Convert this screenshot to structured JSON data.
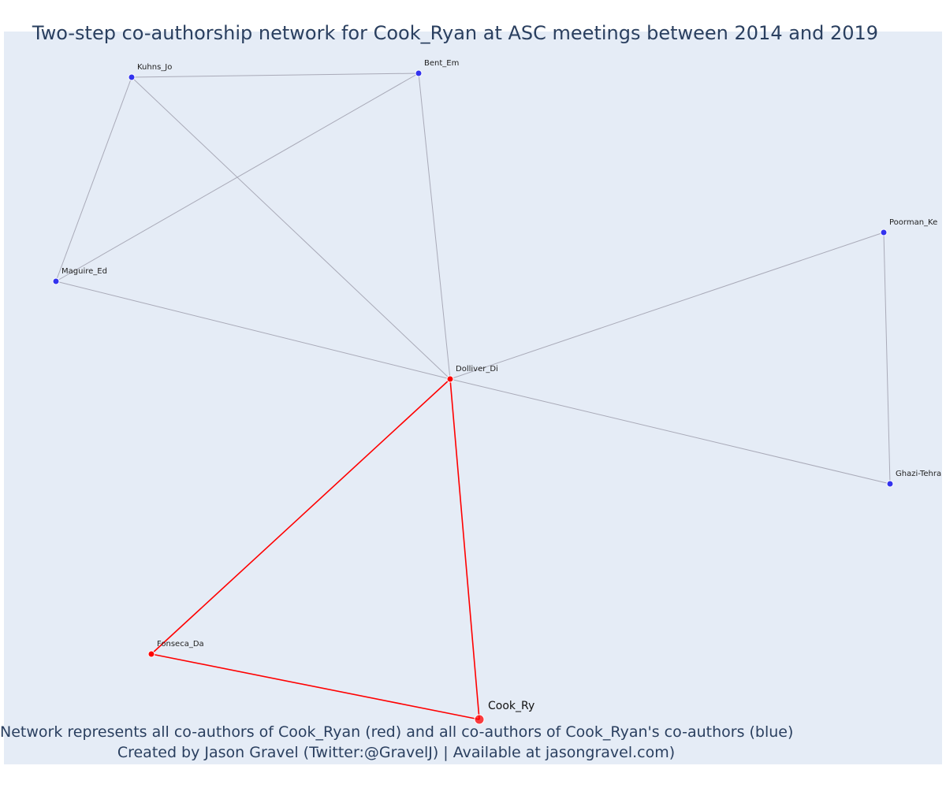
{
  "title": "Two-step co-authorship network for Cook_Ryan at ASC meetings between 2014 and 2019",
  "footnotes": [
    "Network represents all co-authors of Cook_Ryan (red) and all co-authors of Cook_Ryan's co-authors (blue)",
    "Created by Jason Gravel (Twitter:@GravelJ) | Available at jasongravel.com)"
  ],
  "colors": {
    "background": "#e5ecf6",
    "first_step": "#ff0000",
    "second_step": "#3333ee",
    "grey_edge": "#a9aab8",
    "text": "#2a3f5f"
  },
  "nodes": [
    {
      "id": "Kuhns_Jo",
      "label": "Kuhns_Jo",
      "group": "second_step"
    },
    {
      "id": "Bent_Em",
      "label": "Bent_Em",
      "group": "second_step"
    },
    {
      "id": "Poorman_Ke",
      "label": "Poorman_Ke",
      "group": "second_step"
    },
    {
      "id": "Maguire_Ed",
      "label": "Maguire_Ed",
      "group": "second_step"
    },
    {
      "id": "Dolliver_Di",
      "label": "Dolliver_Di",
      "group": "first_step"
    },
    {
      "id": "Ghazi-Tehrani",
      "label": "Ghazi-Tehran",
      "group": "second_step"
    },
    {
      "id": "Fonseca_Da",
      "label": "Fonseca_Da",
      "group": "first_step"
    },
    {
      "id": "Cook_Ry",
      "label": "Cook_Ry",
      "group": "focal"
    }
  ],
  "edges": [
    {
      "source": "Kuhns_Jo",
      "target": "Bent_Em",
      "color": "grey"
    },
    {
      "source": "Kuhns_Jo",
      "target": "Maguire_Ed",
      "color": "grey"
    },
    {
      "source": "Kuhns_Jo",
      "target": "Dolliver_Di",
      "color": "grey"
    },
    {
      "source": "Bent_Em",
      "target": "Maguire_Ed",
      "color": "grey"
    },
    {
      "source": "Bent_Em",
      "target": "Dolliver_Di",
      "color": "grey"
    },
    {
      "source": "Maguire_Ed",
      "target": "Dolliver_Di",
      "color": "grey"
    },
    {
      "source": "Poorman_Ke",
      "target": "Dolliver_Di",
      "color": "grey"
    },
    {
      "source": "Poorman_Ke",
      "target": "Ghazi-Tehrani",
      "color": "grey"
    },
    {
      "source": "Dolliver_Di",
      "target": "Ghazi-Tehrani",
      "color": "grey"
    },
    {
      "source": "Dolliver_Di",
      "target": "Fonseca_Da",
      "color": "red"
    },
    {
      "source": "Dolliver_Di",
      "target": "Cook_Ry",
      "color": "red"
    },
    {
      "source": "Fonseca_Da",
      "target": "Cook_Ry",
      "color": "red"
    }
  ]
}
